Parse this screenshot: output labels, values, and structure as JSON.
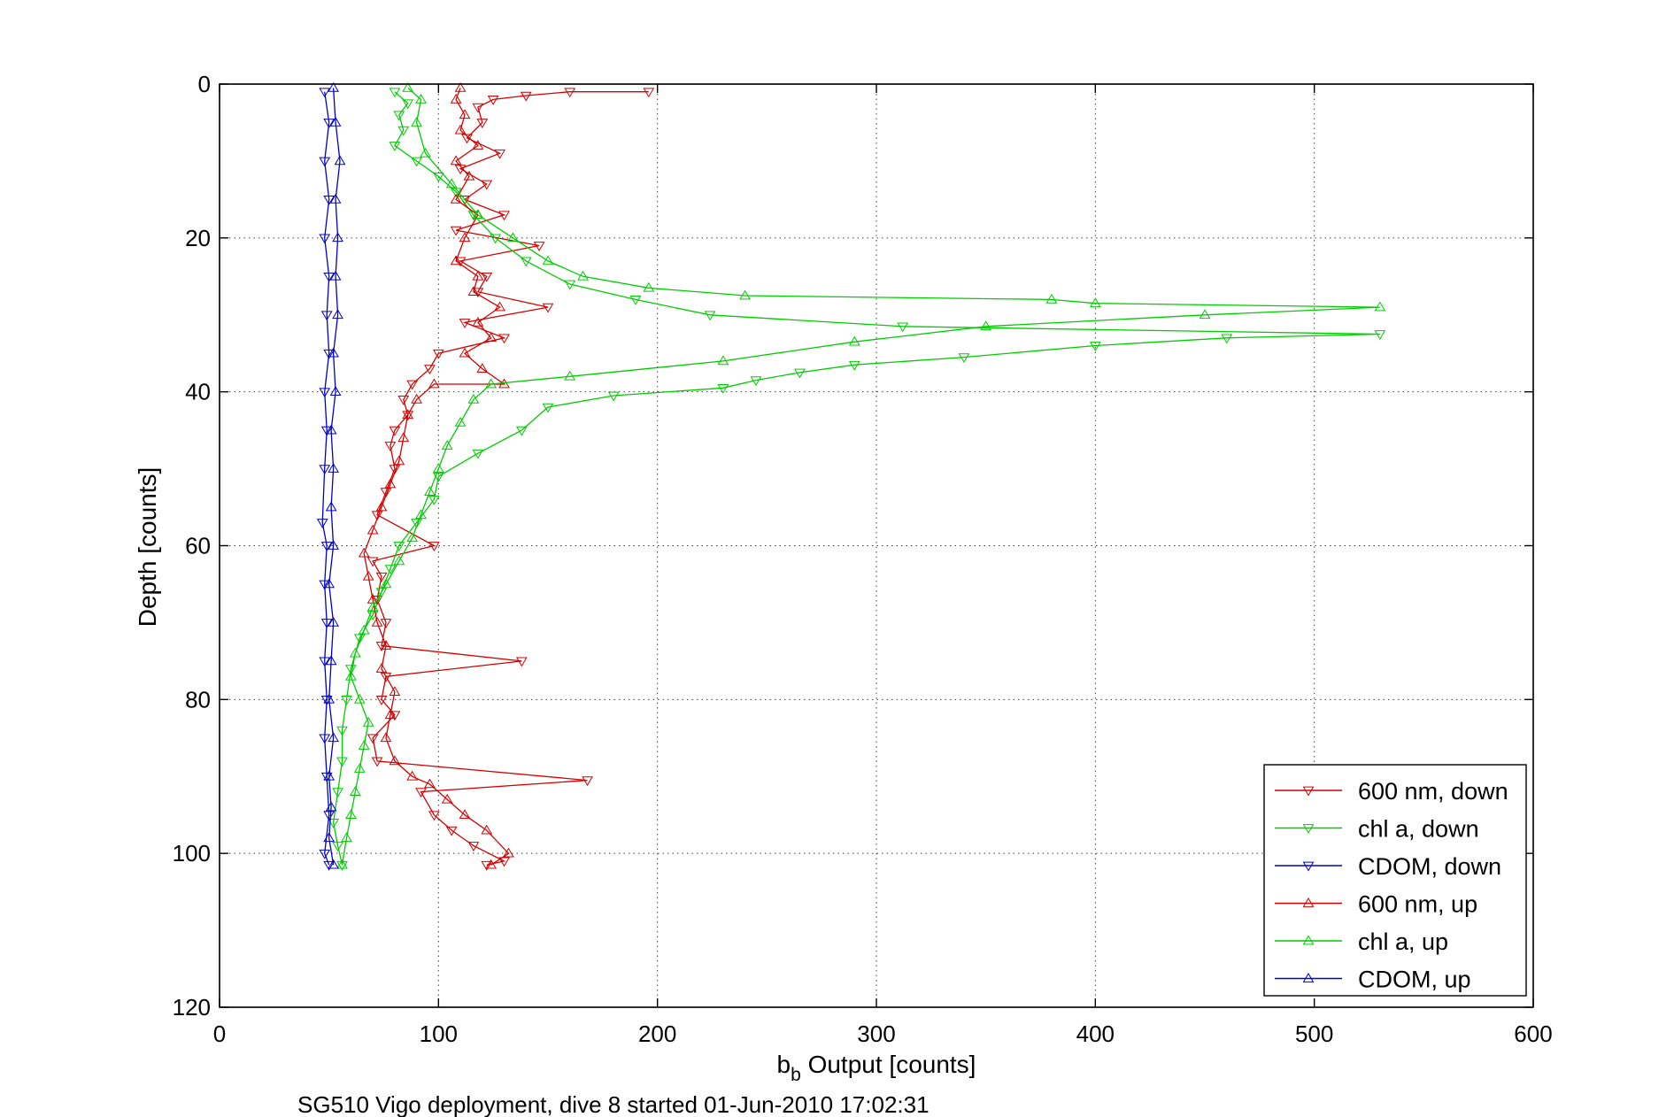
{
  "chart_data": {
    "type": "line",
    "xlabel": "b",
    "xlabel_subscript": "b",
    "xlabel_rest": " Output [counts]",
    "ylabel": "Depth [counts]",
    "caption": "SG510 Vigo deployment, dive 8 started 01-Jun-2010 17:02:31",
    "xlim": [
      0,
      600
    ],
    "ylim": [
      0,
      120
    ],
    "y_reversed": true,
    "grid": true,
    "xticks": [
      "0",
      "100",
      "200",
      "300",
      "400",
      "500",
      "600"
    ],
    "yticks": [
      "0",
      "20",
      "40",
      "60",
      "80",
      "100",
      "120"
    ],
    "legend_position": "bottom-right",
    "series": [
      {
        "name": "600 nm, down",
        "color": "#d40000",
        "marker": "triangle-down",
        "points": [
          [
            196,
            1
          ],
          [
            160,
            1
          ],
          [
            140,
            1.5
          ],
          [
            125,
            2
          ],
          [
            118,
            3
          ],
          [
            120,
            5
          ],
          [
            113,
            7
          ],
          [
            128,
            9
          ],
          [
            110,
            11
          ],
          [
            122,
            13
          ],
          [
            112,
            15
          ],
          [
            130,
            17
          ],
          [
            108,
            19
          ],
          [
            146,
            21
          ],
          [
            110,
            23
          ],
          [
            122,
            25
          ],
          [
            118,
            27
          ],
          [
            150,
            29
          ],
          [
            112,
            31
          ],
          [
            130,
            33
          ],
          [
            100,
            35
          ],
          [
            96,
            37
          ],
          [
            88,
            39
          ],
          [
            84,
            41
          ],
          [
            86,
            43
          ],
          [
            80,
            45
          ],
          [
            78,
            47
          ],
          [
            80,
            50
          ],
          [
            76,
            53
          ],
          [
            72,
            56
          ],
          [
            98,
            60
          ],
          [
            70,
            62
          ],
          [
            74,
            64
          ],
          [
            72,
            67
          ],
          [
            76,
            70
          ],
          [
            74,
            73
          ],
          [
            138,
            75
          ],
          [
            76,
            77
          ],
          [
            74,
            80
          ],
          [
            80,
            82
          ],
          [
            70,
            85
          ],
          [
            72,
            88
          ],
          [
            168,
            90.5
          ],
          [
            92,
            92
          ],
          [
            98,
            95
          ],
          [
            106,
            97
          ],
          [
            116,
            99
          ],
          [
            130,
            101
          ],
          [
            122,
            101.5
          ]
        ]
      },
      {
        "name": "chl a, down",
        "color": "#00cc00",
        "marker": "triangle-down",
        "points": [
          [
            80,
            1
          ],
          [
            86,
            2.5
          ],
          [
            82,
            4
          ],
          [
            84,
            6
          ],
          [
            80,
            8
          ],
          [
            90,
            10
          ],
          [
            100,
            12
          ],
          [
            108,
            14
          ],
          [
            116,
            17
          ],
          [
            126,
            20
          ],
          [
            140,
            23
          ],
          [
            160,
            26
          ],
          [
            190,
            28
          ],
          [
            224,
            30
          ],
          [
            312,
            31.5
          ],
          [
            530,
            32.5
          ],
          [
            460,
            33
          ],
          [
            400,
            34
          ],
          [
            340,
            35.5
          ],
          [
            290,
            36.5
          ],
          [
            265,
            37.5
          ],
          [
            245,
            38.5
          ],
          [
            230,
            39.5
          ],
          [
            180,
            40.5
          ],
          [
            150,
            42
          ],
          [
            138,
            45
          ],
          [
            118,
            48
          ],
          [
            100,
            51
          ],
          [
            98,
            54
          ],
          [
            90,
            57
          ],
          [
            82,
            60
          ],
          [
            78,
            63
          ],
          [
            74,
            66
          ],
          [
            70,
            69
          ],
          [
            64,
            72
          ],
          [
            60,
            76
          ],
          [
            58,
            80
          ],
          [
            56,
            84
          ],
          [
            56,
            88
          ],
          [
            54,
            92
          ],
          [
            52,
            96
          ],
          [
            54,
            99
          ],
          [
            56,
            101.5
          ]
        ]
      },
      {
        "name": "CDOM, down",
        "color": "#0000cc",
        "marker": "triangle-down",
        "points": [
          [
            48,
            1
          ],
          [
            50,
            5
          ],
          [
            48,
            10
          ],
          [
            50,
            15
          ],
          [
            48,
            20
          ],
          [
            50,
            25
          ],
          [
            49,
            30
          ],
          [
            50,
            35
          ],
          [
            48,
            40
          ],
          [
            49,
            45
          ],
          [
            48,
            50
          ],
          [
            47,
            57
          ],
          [
            49,
            60
          ],
          [
            48,
            65
          ],
          [
            49,
            70
          ],
          [
            48,
            75
          ],
          [
            49,
            80
          ],
          [
            48,
            85
          ],
          [
            49,
            90
          ],
          [
            50,
            95
          ],
          [
            48,
            100
          ],
          [
            50,
            101.5
          ]
        ]
      },
      {
        "name": "600 nm, up",
        "color": "#d40000",
        "marker": "triangle-up",
        "points": [
          [
            124,
            101.5
          ],
          [
            132,
            100
          ],
          [
            122,
            97
          ],
          [
            112,
            95
          ],
          [
            104,
            93
          ],
          [
            96,
            91
          ],
          [
            88,
            90
          ],
          [
            80,
            88
          ],
          [
            76,
            85
          ],
          [
            78,
            82
          ],
          [
            80,
            79
          ],
          [
            74,
            76
          ],
          [
            76,
            73
          ],
          [
            72,
            70
          ],
          [
            70,
            67
          ],
          [
            68,
            64
          ],
          [
            66,
            61
          ],
          [
            70,
            58
          ],
          [
            74,
            55
          ],
          [
            78,
            52
          ],
          [
            82,
            49
          ],
          [
            84,
            46
          ],
          [
            86,
            43
          ],
          [
            90,
            41
          ],
          [
            98,
            39
          ],
          [
            130,
            39
          ],
          [
            120,
            37
          ],
          [
            112,
            35
          ],
          [
            124,
            33
          ],
          [
            118,
            31
          ],
          [
            128,
            29
          ],
          [
            116,
            27
          ],
          [
            118,
            25
          ],
          [
            108,
            23
          ],
          [
            112,
            20
          ],
          [
            118,
            17
          ],
          [
            108,
            15
          ],
          [
            114,
            12
          ],
          [
            108,
            10
          ],
          [
            118,
            8
          ],
          [
            110,
            6
          ],
          [
            112,
            4
          ],
          [
            108,
            2
          ],
          [
            110,
            0.5
          ]
        ]
      },
      {
        "name": "chl a, up",
        "color": "#00cc00",
        "marker": "triangle-up",
        "points": [
          [
            56,
            101.5
          ],
          [
            58,
            98
          ],
          [
            60,
            95
          ],
          [
            62,
            92
          ],
          [
            64,
            89
          ],
          [
            66,
            86
          ],
          [
            68,
            83
          ],
          [
            64,
            80
          ],
          [
            60,
            77
          ],
          [
            62,
            74
          ],
          [
            66,
            71
          ],
          [
            70,
            68
          ],
          [
            76,
            65
          ],
          [
            82,
            62
          ],
          [
            88,
            59
          ],
          [
            92,
            56
          ],
          [
            96,
            53
          ],
          [
            100,
            50
          ],
          [
            104,
            47
          ],
          [
            110,
            44
          ],
          [
            116,
            41
          ],
          [
            124,
            39
          ],
          [
            160,
            38
          ],
          [
            230,
            36
          ],
          [
            290,
            33.5
          ],
          [
            350,
            31.5
          ],
          [
            450,
            30
          ],
          [
            530,
            29
          ],
          [
            400,
            28.5
          ],
          [
            380,
            28
          ],
          [
            240,
            27.5
          ],
          [
            196,
            26.5
          ],
          [
            166,
            25
          ],
          [
            150,
            23
          ],
          [
            134,
            20
          ],
          [
            118,
            17
          ],
          [
            106,
            13
          ],
          [
            94,
            9
          ],
          [
            90,
            5
          ],
          [
            92,
            2
          ],
          [
            86,
            0.5
          ]
        ]
      },
      {
        "name": "CDOM, up",
        "color": "#0000cc",
        "marker": "triangle-up",
        "points": [
          [
            52,
            101.5
          ],
          [
            50,
            98
          ],
          [
            51,
            94
          ],
          [
            50,
            90
          ],
          [
            52,
            85
          ],
          [
            50,
            80
          ],
          [
            51,
            75
          ],
          [
            52,
            70
          ],
          [
            50,
            65
          ],
          [
            52,
            60
          ],
          [
            51,
            55
          ],
          [
            52,
            50
          ],
          [
            51,
            45
          ],
          [
            53,
            40
          ],
          [
            52,
            35
          ],
          [
            54,
            30
          ],
          [
            53,
            25
          ],
          [
            54,
            20
          ],
          [
            53,
            15
          ],
          [
            55,
            10
          ],
          [
            53,
            5
          ],
          [
            52,
            0.5
          ]
        ]
      }
    ]
  }
}
